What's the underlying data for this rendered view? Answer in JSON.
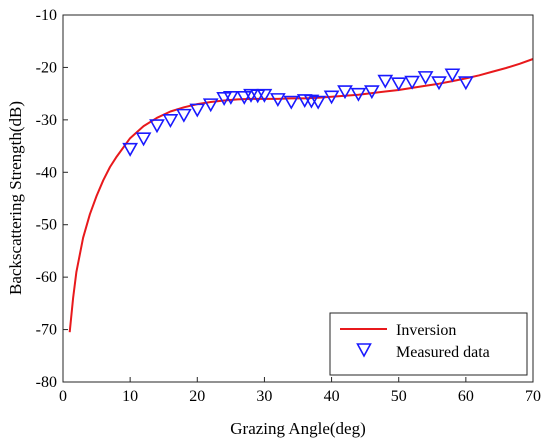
{
  "chart_data": {
    "type": "line",
    "xlabel": "Grazing Angle(deg)",
    "ylabel": "Backscattering Strength(dB)",
    "xlim": [
      0,
      70
    ],
    "ylim": [
      -80,
      -10
    ],
    "xticks": [
      "0",
      "10",
      "20",
      "30",
      "40",
      "50",
      "60",
      "70"
    ],
    "yticks": [
      "-10",
      "-20",
      "-30",
      "-40",
      "-50",
      "-60",
      "-70",
      "-80"
    ],
    "grid": false,
    "legend_position": "bottom-right",
    "series": [
      {
        "name": "Inversion",
        "kind": "line",
        "color": "#e8191c",
        "x": [
          1,
          1.5,
          2,
          3,
          4,
          5,
          6,
          7,
          8,
          10,
          12,
          14,
          16,
          18,
          20,
          22,
          24,
          26,
          28,
          30,
          32,
          34,
          36,
          38,
          40,
          42,
          44,
          46,
          48,
          50,
          52,
          54,
          56,
          58,
          60,
          62,
          64,
          66,
          68,
          70
        ],
        "y": [
          -70.5,
          -64,
          -59,
          -52.5,
          -48,
          -44.5,
          -41.5,
          -39,
          -37,
          -33.5,
          -31.2,
          -29.6,
          -28.4,
          -27.6,
          -27,
          -26.6,
          -26.3,
          -26.1,
          -26,
          -26,
          -26,
          -25.9,
          -25.9,
          -25.8,
          -25.6,
          -25.4,
          -25.2,
          -24.9,
          -24.6,
          -24.3,
          -23.9,
          -23.5,
          -23.1,
          -22.6,
          -22.1,
          -21.5,
          -20.8,
          -20.1,
          -19.3,
          -18.4
        ]
      },
      {
        "name": "Measured data",
        "kind": "scatter",
        "marker": "triangle-down",
        "color": "#1a1aff",
        "x": [
          10,
          12,
          14,
          16,
          18,
          20,
          22,
          24,
          25,
          27,
          28,
          29,
          30,
          32,
          34,
          36,
          37,
          38,
          40,
          42,
          44,
          46,
          48,
          50,
          52,
          54,
          56,
          58,
          60
        ],
        "y": [
          -35.5,
          -33.5,
          -31,
          -30,
          -29,
          -28,
          -27,
          -25.8,
          -25.6,
          -25.6,
          -25.2,
          -25.3,
          -25.2,
          -26,
          -26.5,
          -26.2,
          -26.3,
          -26.5,
          -25.5,
          -24.5,
          -25,
          -24.5,
          -22.5,
          -23,
          -22.7,
          -21.8,
          -22.8,
          -21.3,
          -22.8
        ]
      }
    ]
  }
}
